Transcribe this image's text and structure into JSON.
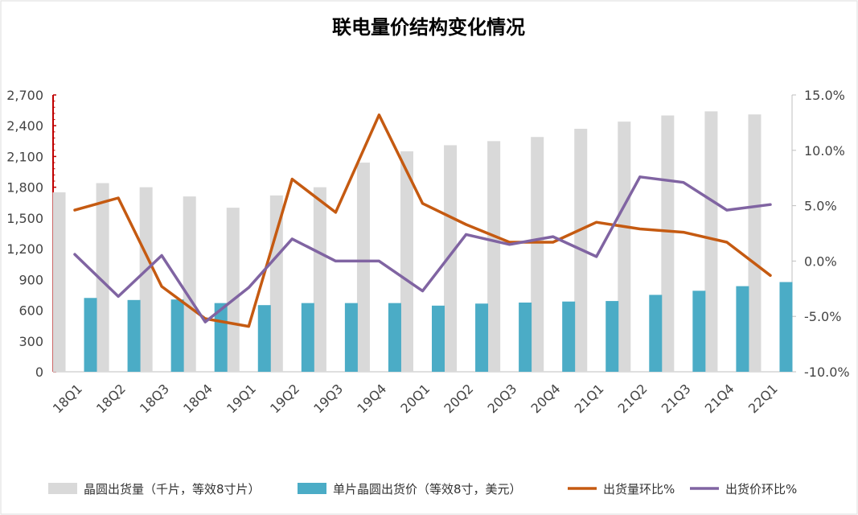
{
  "chart_data": {
    "type": "bar",
    "title": "联电量价结构变化情况",
    "categories": [
      "18Q1",
      "18Q2",
      "18Q3",
      "18Q4",
      "19Q1",
      "19Q2",
      "19Q3",
      "19Q4",
      "20Q1",
      "20Q2",
      "20Q3",
      "20Q4",
      "21Q1",
      "21Q2",
      "21Q3",
      "21Q4",
      "22Q1"
    ],
    "y_left": {
      "ylim": [
        0,
        2700
      ],
      "ticks": [
        "0",
        "300",
        "600",
        "900",
        "1,200",
        "1,500",
        "1,800",
        "2,100",
        "2,400",
        "2,700"
      ]
    },
    "y_right": {
      "ylim": [
        -10,
        15
      ],
      "ticks": [
        "-10.0%",
        "-5.0%",
        "0.0%",
        "5.0%",
        "10.0%",
        "15.0%"
      ]
    },
    "grid": false,
    "legend_position": "bottom",
    "series": [
      {
        "name": "晶圆出货量（千片，等效8寸片）",
        "type": "bar",
        "axis": "left",
        "color": "#d9d9d9",
        "values": [
          1750,
          1840,
          1800,
          1710,
          1600,
          1720,
          1800,
          2040,
          2150,
          2210,
          2250,
          2290,
          2370,
          2440,
          2500,
          2540,
          2510
        ]
      },
      {
        "name": "单片晶圆出货价（等效8寸，美元）",
        "type": "bar",
        "axis": "left",
        "color": "#4bacc6",
        "values": [
          720,
          700,
          705,
          670,
          650,
          670,
          670,
          670,
          645,
          665,
          675,
          685,
          690,
          750,
          790,
          835,
          875
        ]
      },
      {
        "name": "出货量环比%",
        "type": "line",
        "axis": "right",
        "color": "#c55a11",
        "values": [
          4.6,
          5.7,
          -2.3,
          -5.2,
          -5.9,
          7.4,
          4.4,
          13.2,
          5.2,
          3.3,
          1.7,
          1.7,
          3.5,
          2.9,
          2.6,
          1.7,
          -1.3
        ]
      },
      {
        "name": "出货价环比%",
        "type": "line",
        "axis": "right",
        "color": "#8064a2",
        "values": [
          0.6,
          -3.2,
          0.5,
          -5.5,
          -2.4,
          2.0,
          0.0,
          0.0,
          -2.7,
          2.4,
          1.5,
          2.2,
          0.4,
          7.6,
          7.1,
          4.6,
          5.1
        ]
      }
    ]
  }
}
